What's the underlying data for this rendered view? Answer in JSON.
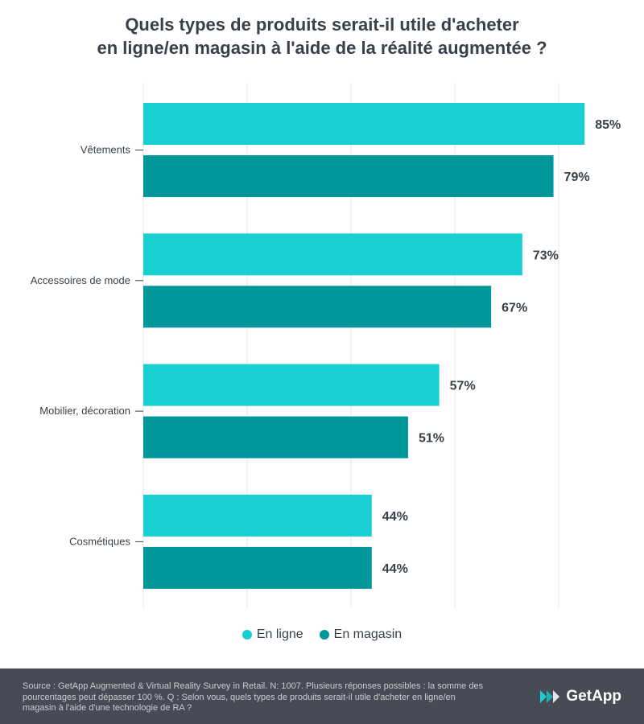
{
  "title_lines": [
    "Quels types de produits serait-il utile d'acheter",
    "en ligne/en magasin à l'aide de la réalité augmentée ?"
  ],
  "chart_data": {
    "type": "bar",
    "orientation": "horizontal",
    "categories": [
      "Vêtements",
      "Accessoires de mode",
      "Mobilier, décoration",
      "Cosmétiques"
    ],
    "series": [
      {
        "name": "En ligne",
        "color": "#1acfd1",
        "values": [
          85,
          73,
          57,
          44
        ]
      },
      {
        "name": "En magasin",
        "color": "#00979a",
        "values": [
          79,
          67,
          51,
          44
        ]
      }
    ],
    "value_suffix": "%",
    "xlim": [
      0,
      100
    ],
    "grid": true,
    "legend": "bottom-center"
  },
  "footer": {
    "note": "Source : GetApp Augmented & Virtual Reality Survey in Retail. N: 1007. Plusieurs réponses possibles : la somme des pourcentages peut dépasser 100 %. Q : Selon vous, quels types de produits serait-il utile d'acheter en ligne/en magasin à l'aide d'une technologie de RA ?",
    "brand": "GetApp",
    "brand_icon": "getapp-logo-icon"
  }
}
